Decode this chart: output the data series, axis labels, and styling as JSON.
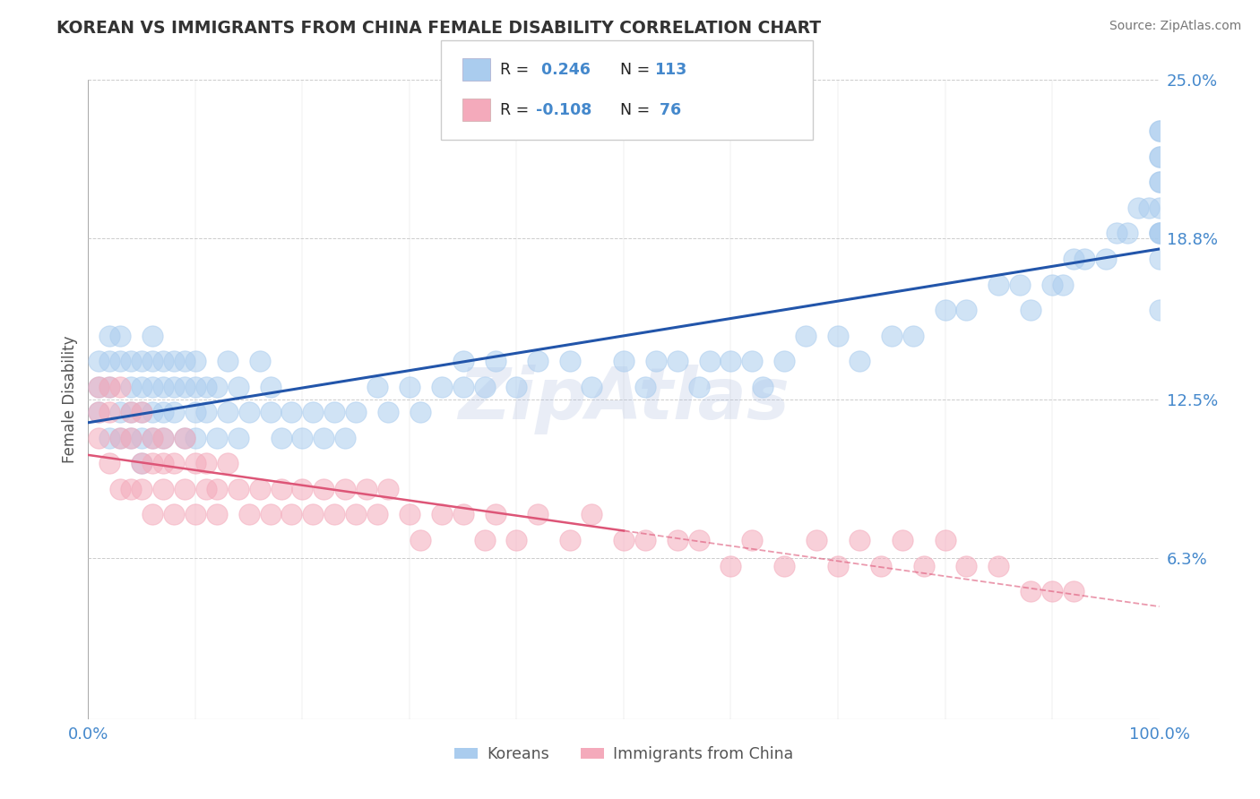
{
  "title": "KOREAN VS IMMIGRANTS FROM CHINA FEMALE DISABILITY CORRELATION CHART",
  "source": "Source: ZipAtlas.com",
  "ylabel": "Female Disability",
  "watermark": "ZipAtlas",
  "xlim": [
    0.0,
    100.0
  ],
  "ylim": [
    0.0,
    25.0
  ],
  "ytick_vals": [
    6.3,
    12.5,
    18.8,
    25.0
  ],
  "ytick_labels": [
    "6.3%",
    "12.5%",
    "18.8%",
    "25.0%"
  ],
  "legend_r1": "R =  0.246",
  "legend_n1": "N = 113",
  "legend_r2": "R = -0.108",
  "legend_n2": "N =  76",
  "legend_label1": "Koreans",
  "legend_label2": "Immigrants from China",
  "blue_color": "#aaccee",
  "pink_color": "#f4aabb",
  "trend_blue": "#2255aa",
  "trend_pink": "#dd5577",
  "background_color": "#ffffff",
  "grid_color": "#cccccc",
  "title_color": "#333333",
  "axis_label_color": "#4488cc",
  "r_value_color": "#4488cc",
  "koreans_x": [
    1,
    1,
    1,
    2,
    2,
    2,
    2,
    3,
    3,
    3,
    3,
    4,
    4,
    4,
    4,
    5,
    5,
    5,
    5,
    5,
    6,
    6,
    6,
    6,
    6,
    7,
    7,
    7,
    7,
    8,
    8,
    8,
    9,
    9,
    9,
    10,
    10,
    10,
    10,
    11,
    11,
    12,
    12,
    13,
    13,
    14,
    14,
    15,
    16,
    17,
    17,
    18,
    19,
    20,
    21,
    22,
    23,
    24,
    25,
    27,
    28,
    30,
    31,
    33,
    35,
    35,
    37,
    38,
    40,
    42,
    45,
    47,
    50,
    52,
    53,
    55,
    57,
    58,
    60,
    62,
    63,
    65,
    67,
    70,
    72,
    75,
    77,
    80,
    82,
    85,
    87,
    88,
    90,
    91,
    92,
    93,
    95,
    96,
    97,
    98,
    99,
    100,
    100,
    100,
    100,
    100,
    100,
    100,
    100,
    100,
    100,
    100,
    100
  ],
  "koreans_y": [
    12,
    13,
    14,
    11,
    13,
    14,
    15,
    11,
    12,
    14,
    15,
    11,
    12,
    13,
    14,
    10,
    11,
    12,
    13,
    14,
    11,
    12,
    13,
    14,
    15,
    11,
    12,
    13,
    14,
    12,
    13,
    14,
    11,
    13,
    14,
    11,
    12,
    13,
    14,
    12,
    13,
    11,
    13,
    12,
    14,
    11,
    13,
    12,
    14,
    12,
    13,
    11,
    12,
    11,
    12,
    11,
    12,
    11,
    12,
    13,
    12,
    13,
    12,
    13,
    13,
    14,
    13,
    14,
    13,
    14,
    14,
    13,
    14,
    13,
    14,
    14,
    13,
    14,
    14,
    14,
    13,
    14,
    15,
    15,
    14,
    15,
    15,
    16,
    16,
    17,
    17,
    16,
    17,
    17,
    18,
    18,
    18,
    19,
    19,
    20,
    20,
    19,
    21,
    22,
    23,
    19,
    21,
    19,
    16,
    20,
    18,
    23,
    22
  ],
  "china_x": [
    1,
    1,
    1,
    2,
    2,
    2,
    3,
    3,
    3,
    4,
    4,
    4,
    5,
    5,
    5,
    6,
    6,
    6,
    7,
    7,
    7,
    8,
    8,
    9,
    9,
    10,
    10,
    11,
    11,
    12,
    12,
    13,
    14,
    15,
    16,
    17,
    18,
    19,
    20,
    21,
    22,
    23,
    24,
    25,
    26,
    27,
    28,
    30,
    31,
    33,
    35,
    37,
    38,
    40,
    42,
    45,
    47,
    50,
    52,
    55,
    57,
    60,
    62,
    65,
    68,
    70,
    72,
    74,
    76,
    78,
    80,
    82,
    85,
    88,
    90,
    92
  ],
  "china_y": [
    11,
    12,
    13,
    10,
    12,
    13,
    9,
    11,
    13,
    9,
    11,
    12,
    9,
    10,
    12,
    8,
    10,
    11,
    9,
    10,
    11,
    8,
    10,
    9,
    11,
    8,
    10,
    9,
    10,
    8,
    9,
    10,
    9,
    8,
    9,
    8,
    9,
    8,
    9,
    8,
    9,
    8,
    9,
    8,
    9,
    8,
    9,
    8,
    7,
    8,
    8,
    7,
    8,
    7,
    8,
    7,
    8,
    7,
    7,
    7,
    7,
    6,
    7,
    6,
    7,
    6,
    7,
    6,
    7,
    6,
    7,
    6,
    6,
    5,
    5,
    5
  ]
}
